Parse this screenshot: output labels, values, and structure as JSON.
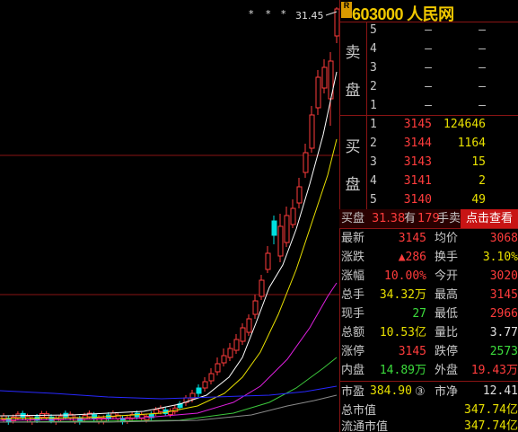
{
  "stock": {
    "code": "603000",
    "name": "人民网",
    "badge": "R"
  },
  "chart": {
    "high_label": "31.45",
    "markers": [
      "*",
      "*",
      "*"
    ],
    "colors": {
      "up": "#ff3c3c",
      "down": "#00e0e0",
      "ma5": "#ffffff",
      "ma10": "#e8e000",
      "ma20": "#e020e0",
      "ma30": "#3cc83c",
      "ma60": "#2828ff",
      "grid": "#8a1414"
    }
  },
  "chart_data": {
    "type": "candlestick",
    "title": "",
    "high_label": "31.45",
    "high_value": 31.45
  },
  "orderbook": {
    "sell_label": [
      "卖",
      "盘"
    ],
    "buy_label": [
      "买",
      "盘"
    ],
    "asks": [
      {
        "level": "5",
        "price": "–",
        "volume": "–"
      },
      {
        "level": "4",
        "price": "–",
        "volume": "–"
      },
      {
        "level": "3",
        "price": "–",
        "volume": "–"
      },
      {
        "level": "2",
        "price": "–",
        "volume": "–"
      },
      {
        "level": "1",
        "price": "–",
        "volume": "–"
      }
    ],
    "bids": [
      {
        "level": "1",
        "price": "3145",
        "volume": "124646"
      },
      {
        "level": "2",
        "price": "3144",
        "volume": "1164"
      },
      {
        "level": "3",
        "price": "3143",
        "volume": "15"
      },
      {
        "level": "4",
        "price": "3141",
        "volume": "2"
      },
      {
        "level": "5",
        "price": "3140",
        "volume": "49"
      }
    ]
  },
  "buybar": {
    "label": "买盘",
    "price": "31.38",
    "has": "有",
    "hands": "179",
    "unit": "手卖",
    "button": "点击查看"
  },
  "quotes": [
    {
      "k1": "最新",
      "v1": "3145",
      "c1": "red",
      "k2": "均价",
      "v2": "3068",
      "c2": "red"
    },
    {
      "k1": "涨跌",
      "v1": "▲286",
      "c1": "red",
      "k2": "换手",
      "v2": "3.10%",
      "c2": "yel"
    },
    {
      "k1": "涨幅",
      "v1": "10.00%",
      "c1": "red",
      "k2": "今开",
      "v2": "3020",
      "c2": "red"
    },
    {
      "k1": "总手",
      "v1": "34.32万",
      "c1": "yel",
      "k2": "最高",
      "v2": "3145",
      "c2": "red"
    },
    {
      "k1": "现手",
      "v1": "27",
      "c1": "grn",
      "k2": "最低",
      "v2": "2966",
      "c2": "red"
    },
    {
      "k1": "总额",
      "v1": "10.53亿",
      "c1": "yel",
      "k2": "量比",
      "v2": "3.77",
      "c2": "wht"
    },
    {
      "k1": "涨停",
      "v1": "3145",
      "c1": "red",
      "k2": "跌停",
      "v2": "2573",
      "c2": "grn"
    },
    {
      "k1": "内盘",
      "v1": "14.89万",
      "c1": "grn",
      "k2": "外盘",
      "v2": "19.43万",
      "c2": "red"
    }
  ],
  "market": {
    "pe_label": "市盈",
    "pe_value": "384.90",
    "pe_mark": "③",
    "pb_label": "市净",
    "pb_value": "12.41",
    "total_mv_label": "总市值",
    "total_mv_value": "347.74亿",
    "float_mv_label": "流通市值",
    "float_mv_value": "347.74亿"
  }
}
